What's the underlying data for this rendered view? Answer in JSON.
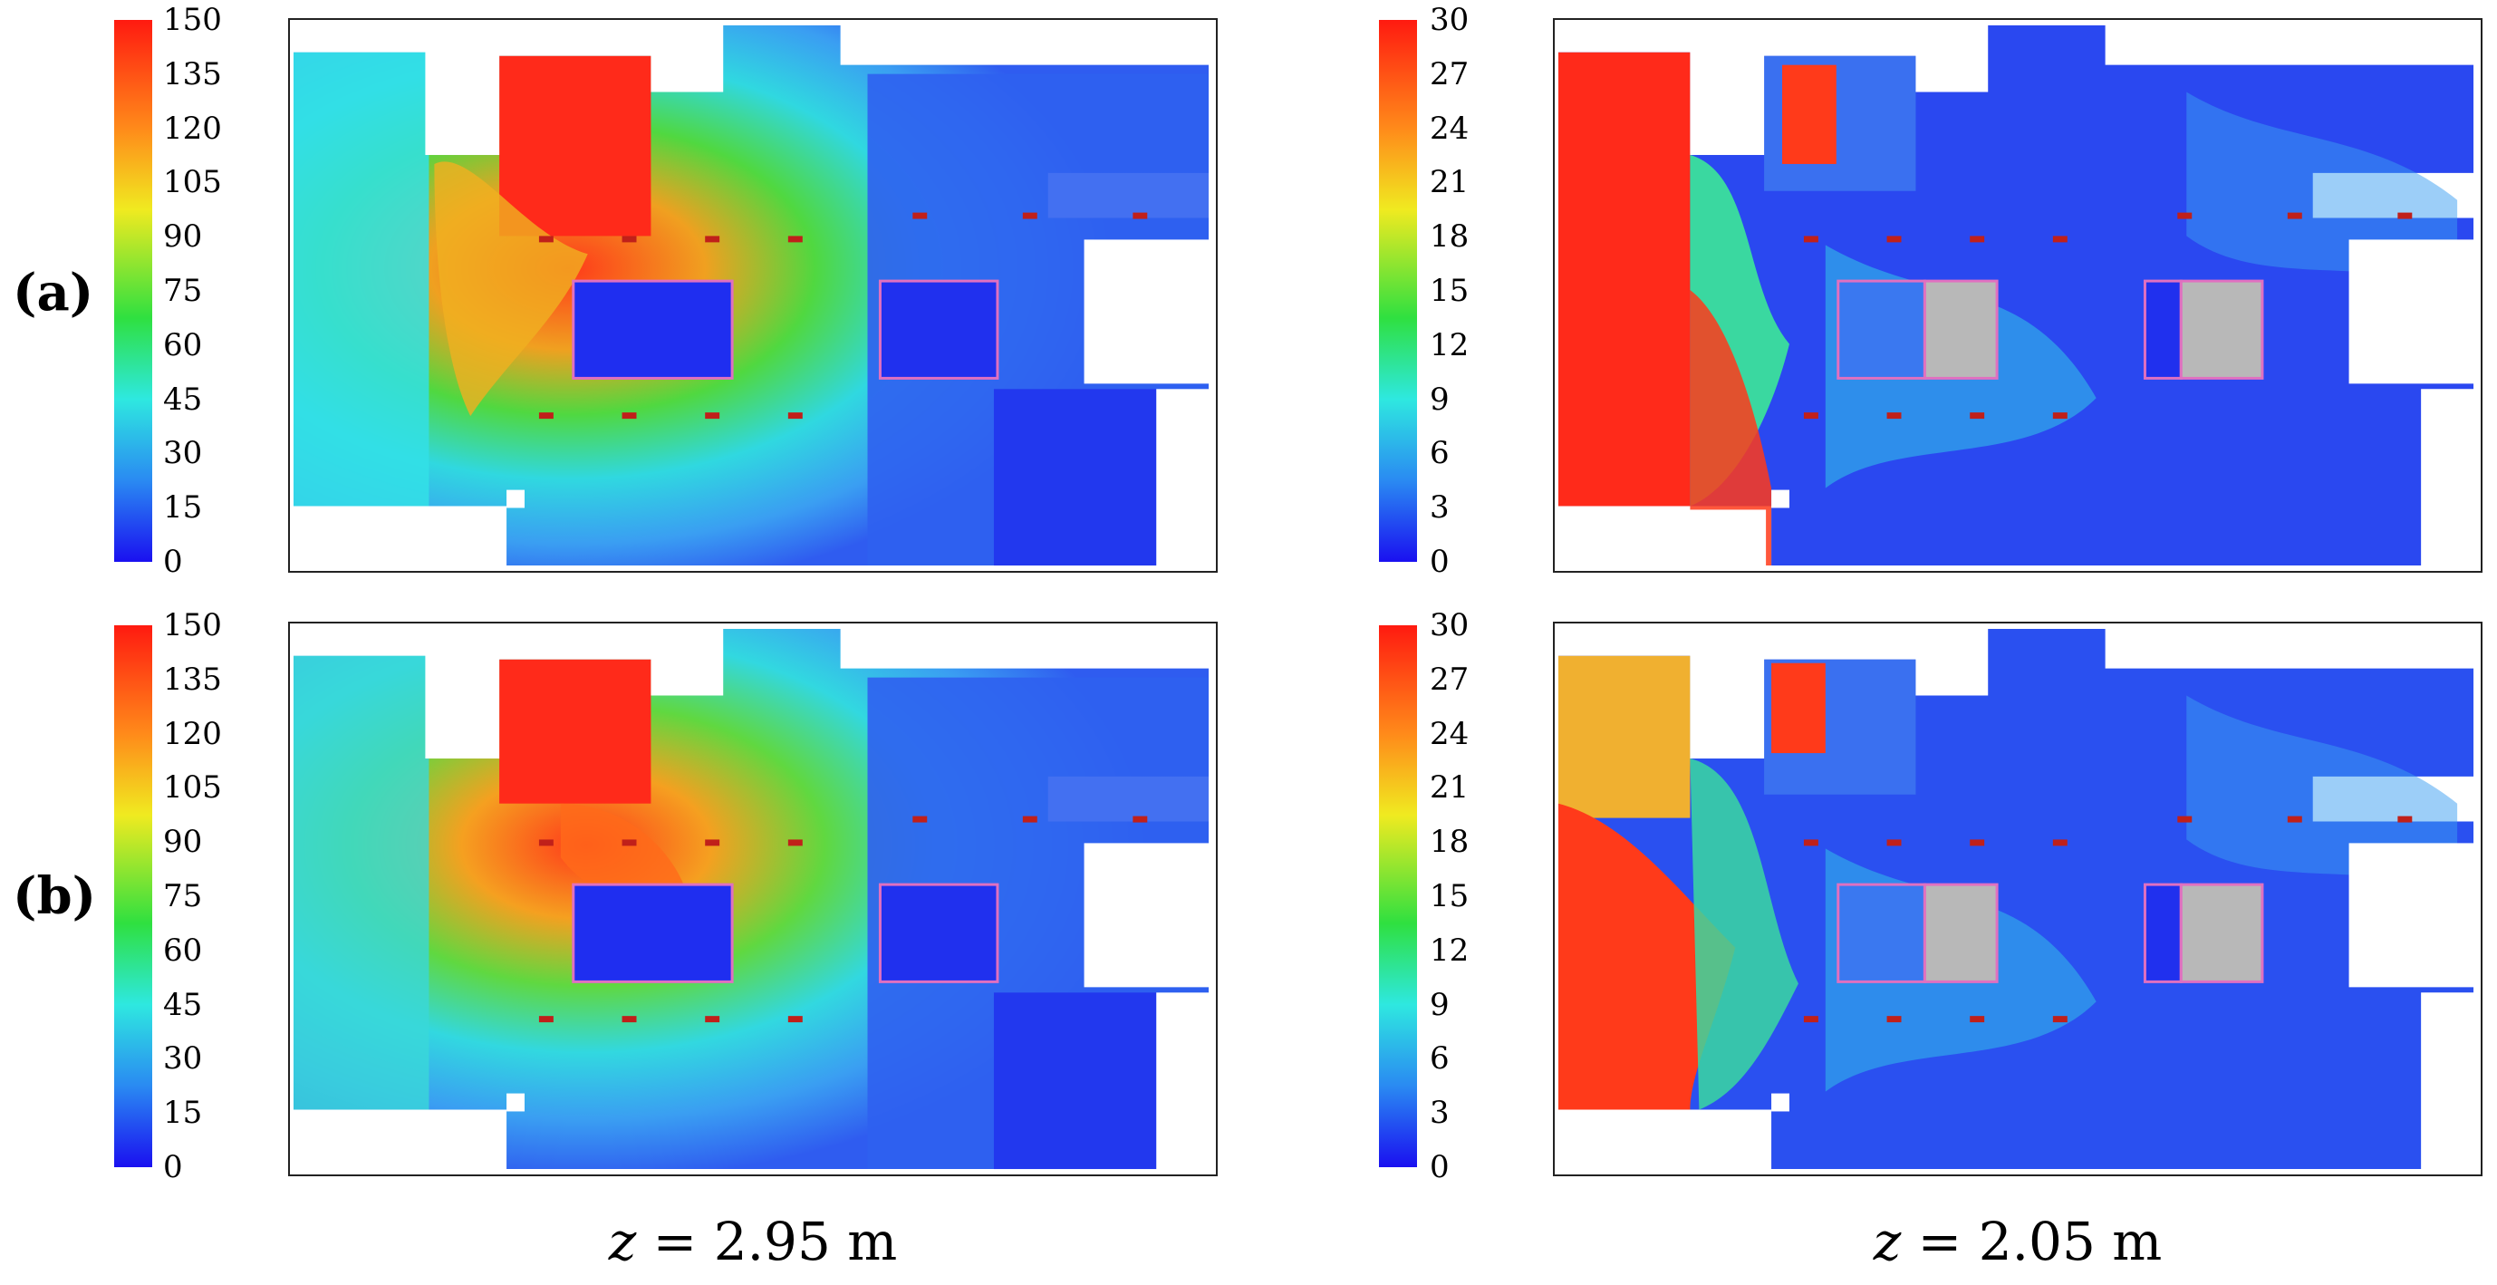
{
  "rows": [
    {
      "label": "(a)"
    },
    {
      "label": "(b)"
    }
  ],
  "colorbars": {
    "left_ticks": [
      "150",
      "135",
      "120",
      "105",
      "90",
      "75",
      "60",
      "45",
      "30",
      "15",
      "0"
    ],
    "right_ticks": [
      "30",
      "27",
      "24",
      "21",
      "18",
      "15",
      "12",
      "9",
      "6",
      "3",
      "0"
    ]
  },
  "captions": {
    "left": {
      "var": "z",
      "rest": " = 2.95 m"
    },
    "right": {
      "var": "z",
      "rest": " = 2.05 m"
    }
  },
  "colors": {
    "red": "#ff2a1a",
    "orange": "#ff9a2a",
    "yellow": "#e8e62a",
    "green": "#3ed84a",
    "cyan": "#2fe0e8",
    "light_blue": "#3aa6f2",
    "blue": "#2f5cf0",
    "deep_blue": "#1f2ef0",
    "obstacle_gray": "#b8b8b8",
    "outline_pink": "#e070c0",
    "vent_red": "#c0201a"
  }
}
